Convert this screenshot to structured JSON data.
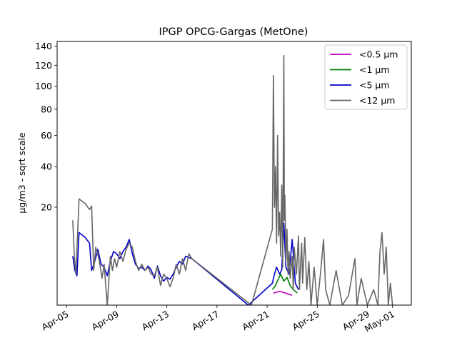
{
  "chart_data": {
    "type": "line",
    "title": "IPGP OPCG-Gargas (MetOne)",
    "xlabel": "",
    "ylabel": "µg/m3 - sqrt scale",
    "y_scale": "sqrt",
    "ylim": [
      0,
      145
    ],
    "xlim": [
      "2024-04-04T06:00",
      "2024-05-02T12:00"
    ],
    "y_ticks": [
      20,
      40,
      60,
      80,
      100,
      120,
      140
    ],
    "x_ticks": [
      {
        "date": "2024-04-05",
        "label": "Apr-05"
      },
      {
        "date": "2024-04-09",
        "label": "Apr-09"
      },
      {
        "date": "2024-04-13",
        "label": "Apr-13"
      },
      {
        "date": "2024-04-17",
        "label": "Apr-17"
      },
      {
        "date": "2024-04-21",
        "label": "Apr-21"
      },
      {
        "date": "2024-04-25",
        "label": "Apr-25"
      },
      {
        "date": "2024-04-29",
        "label": "Apr-29"
      },
      {
        "date": "2024-05-01",
        "label": "May-01"
      }
    ],
    "grid": false,
    "legend_position": "top-right",
    "series": [
      {
        "name": "<0.5 µm",
        "color": "#bf00bf",
        "points": [
          [
            "2024-04-21T12:00",
            0.3
          ],
          [
            "2024-04-22T00:00",
            0.4
          ],
          [
            "2024-04-22T12:00",
            0.3
          ],
          [
            "2024-04-23T00:00",
            0.2
          ]
        ]
      },
      {
        "name": "<1 µm",
        "color": "#008000",
        "points": [
          [
            "2024-04-21T10:00",
            0.5
          ],
          [
            "2024-04-21T16:00",
            0.8
          ],
          [
            "2024-04-21T22:00",
            1.5
          ],
          [
            "2024-04-22T02:00",
            2.0
          ],
          [
            "2024-04-22T08:00",
            1.2
          ],
          [
            "2024-04-22T14:00",
            1.6
          ],
          [
            "2024-04-22T20:00",
            0.8
          ],
          [
            "2024-04-23T02:00",
            0.5
          ],
          [
            "2024-04-23T10:00",
            0.3
          ]
        ]
      },
      {
        "name": "<5 µm",
        "color": "#0000cc",
        "points": [
          [
            "2024-04-05T12:00",
            5.0
          ],
          [
            "2024-04-05T16:00",
            2.5
          ],
          [
            "2024-04-05T20:00",
            1.8
          ],
          [
            "2024-04-06T00:00",
            11.0
          ],
          [
            "2024-04-06T12:00",
            9.5
          ],
          [
            "2024-04-06T20:00",
            8.0
          ],
          [
            "2024-04-07T00:00",
            2.5
          ],
          [
            "2024-04-07T06:00",
            4.0
          ],
          [
            "2024-04-07T12:00",
            6.5
          ],
          [
            "2024-04-07T18:00",
            3.5
          ],
          [
            "2024-04-08T00:00",
            3.0
          ],
          [
            "2024-04-08T06:00",
            1.8
          ],
          [
            "2024-04-08T12:00",
            4.0
          ],
          [
            "2024-04-08T18:00",
            6.0
          ],
          [
            "2024-04-09T00:00",
            5.5
          ],
          [
            "2024-04-09T06:00",
            4.5
          ],
          [
            "2024-04-09T12:00",
            6.0
          ],
          [
            "2024-04-09T18:00",
            7.0
          ],
          [
            "2024-04-10T00:00",
            9.0
          ],
          [
            "2024-04-10T06:00",
            5.5
          ],
          [
            "2024-04-10T12:00",
            3.5
          ],
          [
            "2024-04-10T18:00",
            2.8
          ],
          [
            "2024-04-11T00:00",
            3.0
          ],
          [
            "2024-04-11T06:00",
            2.5
          ],
          [
            "2024-04-11T12:00",
            3.2
          ],
          [
            "2024-04-11T18:00",
            2.6
          ],
          [
            "2024-04-12T00:00",
            1.5
          ],
          [
            "2024-04-12T06:00",
            3.2
          ],
          [
            "2024-04-12T12:00",
            1.8
          ],
          [
            "2024-04-12T18:00",
            1.2
          ],
          [
            "2024-04-13T00:00",
            1.6
          ],
          [
            "2024-04-13T06:00",
            1.4
          ],
          [
            "2024-04-13T12:00",
            2.0
          ],
          [
            "2024-04-13T18:00",
            3.0
          ],
          [
            "2024-04-14T00:00",
            4.0
          ],
          [
            "2024-04-14T06:00",
            3.5
          ],
          [
            "2024-04-14T12:00",
            5.0
          ],
          [
            "2024-04-15T00:00",
            4.5
          ],
          [
            "2024-04-19T12:00",
            0.0
          ],
          [
            "2024-04-21T10:00",
            1.0
          ],
          [
            "2024-04-21T14:00",
            2.0
          ],
          [
            "2024-04-21T18:00",
            3.0
          ],
          [
            "2024-04-22T00:00",
            2.0
          ],
          [
            "2024-04-22T04:00",
            2.6
          ],
          [
            "2024-04-22T08:00",
            14.0
          ],
          [
            "2024-04-22T12:00",
            3.0
          ],
          [
            "2024-04-22T18:00",
            2.0
          ],
          [
            "2024-04-23T00:00",
            9.0
          ],
          [
            "2024-04-23T06:00",
            1.0
          ],
          [
            "2024-04-23T12:00",
            0.5
          ]
        ]
      },
      {
        "name": "<12 µm",
        "color": "#666666",
        "points": [
          [
            "2024-04-05T12:00",
            15.0
          ],
          [
            "2024-04-05T15:00",
            5.0
          ],
          [
            "2024-04-05T18:00",
            2.0
          ],
          [
            "2024-04-06T00:00",
            23.5
          ],
          [
            "2024-04-06T12:00",
            21.5
          ],
          [
            "2024-04-06T20:00",
            19.0
          ],
          [
            "2024-04-07T00:00",
            20.5
          ],
          [
            "2024-04-07T04:00",
            2.5
          ],
          [
            "2024-04-07T08:00",
            7.0
          ],
          [
            "2024-04-07T14:00",
            4.5
          ],
          [
            "2024-04-07T20:00",
            1.5
          ],
          [
            "2024-04-08T00:00",
            3.5
          ],
          [
            "2024-04-08T06:00",
            0.0
          ],
          [
            "2024-04-08T12:00",
            5.0
          ],
          [
            "2024-04-08T16:00",
            2.5
          ],
          [
            "2024-04-08T20:00",
            4.5
          ],
          [
            "2024-04-09T00:00",
            3.0
          ],
          [
            "2024-04-09T06:00",
            6.0
          ],
          [
            "2024-04-09T12:00",
            4.0
          ],
          [
            "2024-04-09T18:00",
            6.5
          ],
          [
            "2024-04-10T00:00",
            8.0
          ],
          [
            "2024-04-10T06:00",
            7.0
          ],
          [
            "2024-04-10T12:00",
            4.0
          ],
          [
            "2024-04-10T18:00",
            2.5
          ],
          [
            "2024-04-11T00:00",
            3.5
          ],
          [
            "2024-04-11T06:00",
            2.5
          ],
          [
            "2024-04-11T12:00",
            3.0
          ],
          [
            "2024-04-11T18:00",
            2.0
          ],
          [
            "2024-04-12T00:00",
            1.8
          ],
          [
            "2024-04-12T06:00",
            3.0
          ],
          [
            "2024-04-12T12:00",
            0.8
          ],
          [
            "2024-04-12T18:00",
            2.0
          ],
          [
            "2024-04-13T00:00",
            1.5
          ],
          [
            "2024-04-13T06:00",
            0.7
          ],
          [
            "2024-04-13T12:00",
            1.5
          ],
          [
            "2024-04-13T18:00",
            3.5
          ],
          [
            "2024-04-14T00:00",
            2.0
          ],
          [
            "2024-04-14T06:00",
            4.5
          ],
          [
            "2024-04-14T12:00",
            2.5
          ],
          [
            "2024-04-14T18:00",
            5.5
          ],
          [
            "2024-04-15T00:00",
            4.5
          ],
          [
            "2024-04-19T18:00",
            0.0
          ],
          [
            "2024-04-21T10:00",
            12.0
          ],
          [
            "2024-04-21T12:00",
            110.0
          ],
          [
            "2024-04-21T14:00",
            20.0
          ],
          [
            "2024-04-21T16:00",
            40.0
          ],
          [
            "2024-04-21T18:00",
            8.0
          ],
          [
            "2024-04-21T20:00",
            60.0
          ],
          [
            "2024-04-21T22:00",
            10.0
          ],
          [
            "2024-04-22T00:00",
            18.0
          ],
          [
            "2024-04-22T02:00",
            5.0
          ],
          [
            "2024-04-22T04:00",
            30.0
          ],
          [
            "2024-04-22T06:00",
            3.0
          ],
          [
            "2024-04-22T08:00",
            130.0
          ],
          [
            "2024-04-22T09:00",
            15.0
          ],
          [
            "2024-04-22T10:00",
            25.0
          ],
          [
            "2024-04-22T12:00",
            4.0
          ],
          [
            "2024-04-22T14:00",
            12.0
          ],
          [
            "2024-04-22T16:00",
            2.0
          ],
          [
            "2024-04-22T18:00",
            6.0
          ],
          [
            "2024-04-22T20:00",
            1.5
          ],
          [
            "2024-04-23T00:00",
            5.0
          ],
          [
            "2024-04-23T02:00",
            0.5
          ],
          [
            "2024-04-23T04:00",
            7.0
          ],
          [
            "2024-04-23T08:00",
            2.0
          ],
          [
            "2024-04-23T12:00",
            10.0
          ],
          [
            "2024-04-23T14:00",
            0.5
          ],
          [
            "2024-04-23T18:00",
            8.0
          ],
          [
            "2024-04-23T20:00",
            1.0
          ],
          [
            "2024-04-24T00:00",
            9.5
          ],
          [
            "2024-04-24T04:00",
            0.5
          ],
          [
            "2024-04-24T08:00",
            4.0
          ],
          [
            "2024-04-24T12:00",
            0.0
          ],
          [
            "2024-04-24T18:00",
            3.0
          ],
          [
            "2024-04-25T00:00",
            0.0
          ],
          [
            "2024-04-25T06:00",
            2.0
          ],
          [
            "2024-04-25T12:00",
            9.0
          ],
          [
            "2024-04-25T16:00",
            0.5
          ],
          [
            "2024-04-26T00:00",
            0.0
          ],
          [
            "2024-04-26T12:00",
            2.5
          ],
          [
            "2024-04-27T00:00",
            0.0
          ],
          [
            "2024-04-27T12:00",
            0.2
          ],
          [
            "2024-04-28T00:00",
            4.5
          ],
          [
            "2024-04-28T04:00",
            0.0
          ],
          [
            "2024-04-28T12:00",
            1.5
          ],
          [
            "2024-04-29T00:00",
            0.0
          ],
          [
            "2024-04-29T12:00",
            0.5
          ],
          [
            "2024-04-29T20:00",
            0.0
          ],
          [
            "2024-04-30T00:00",
            6.0
          ],
          [
            "2024-04-30T04:00",
            11.0
          ],
          [
            "2024-04-30T08:00",
            2.0
          ],
          [
            "2024-04-30T12:00",
            7.0
          ],
          [
            "2024-04-30T16:00",
            0.0
          ],
          [
            "2024-04-30T20:00",
            1.0
          ],
          [
            "2024-05-01T00:00",
            0.0
          ]
        ]
      }
    ]
  }
}
